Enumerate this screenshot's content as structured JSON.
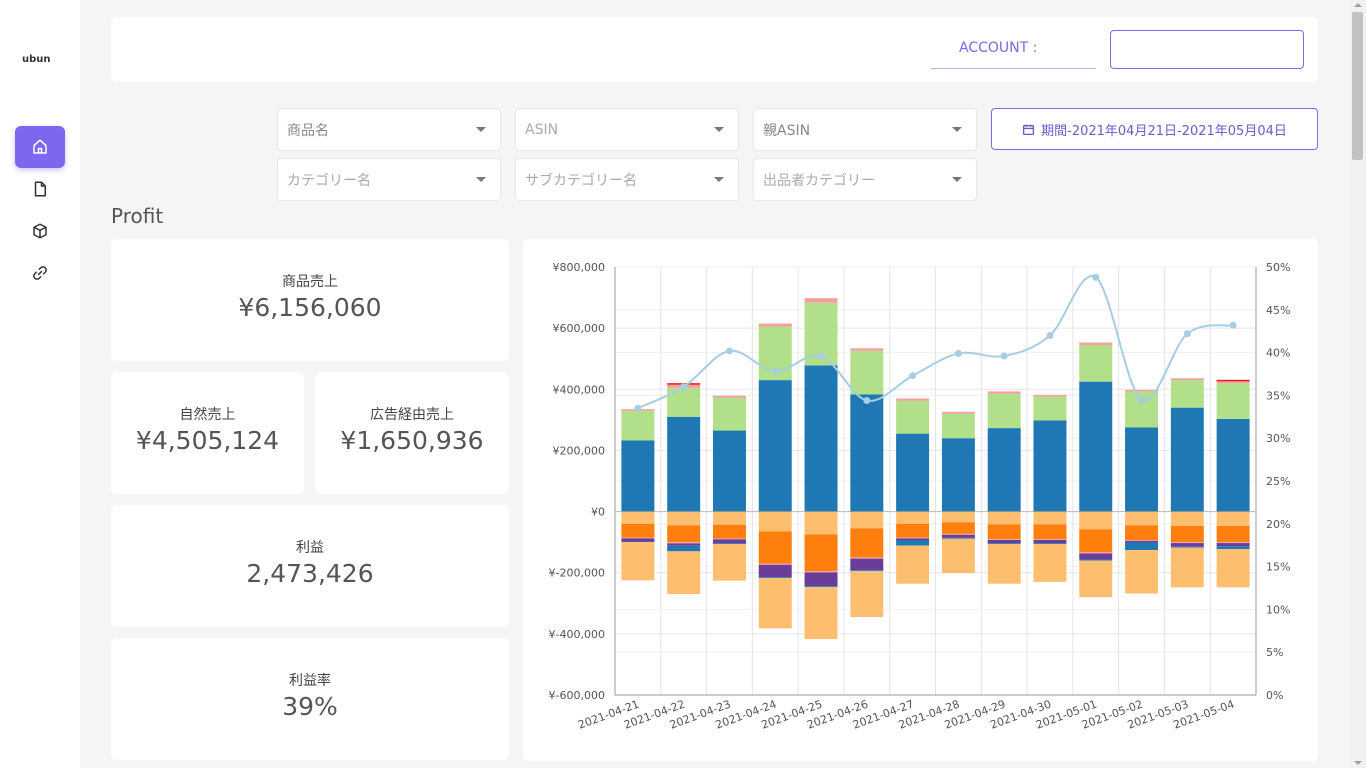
{
  "app": {
    "logo": "ubun"
  },
  "sidebar": {
    "items": [
      {
        "icon": "home-icon",
        "active": true
      },
      {
        "icon": "document-icon",
        "active": false
      },
      {
        "icon": "package-icon",
        "active": false
      },
      {
        "icon": "link-icon",
        "active": false
      }
    ]
  },
  "header": {
    "account_label": "ACCOUNT :",
    "account_value": ""
  },
  "filters": {
    "product_name": "商品名",
    "asin": "ASIN",
    "parent_asin": "親ASIN",
    "category": "カテゴリー名",
    "subcategory": "サブカテゴリー名",
    "seller_category": "出品者カテゴリー",
    "period": "期間-2021年04月21日-2021年05月04日"
  },
  "section": {
    "title": "Profit"
  },
  "kpis": {
    "sales": {
      "label": "商品売上",
      "value": "¥6,156,060"
    },
    "organic": {
      "label": "自然売上",
      "value": "¥4,505,124"
    },
    "ad": {
      "label": "広告経由売上",
      "value": "¥1,650,936"
    },
    "profit": {
      "label": "利益",
      "value": "2,473,426"
    },
    "margin": {
      "label": "利益率",
      "value": "39%"
    }
  },
  "colors": {
    "blue": "#1f77b4",
    "green": "#b2df8a",
    "pink": "#f4a09c",
    "red": "#e31a1c",
    "orange": "#ff7f0e",
    "light_orange": "#fdbf6f",
    "purple": "#6a3d9a",
    "teal": "#1f78b4",
    "line": "#a6cee3",
    "accent": "#7b68ee"
  },
  "chart_data": {
    "type": "bar",
    "categories": [
      "2021-04-21",
      "2021-04-22",
      "2021-04-23",
      "2021-04-24",
      "2021-04-25",
      "2021-04-26",
      "2021-04-27",
      "2021-04-28",
      "2021-04-29",
      "2021-04-30",
      "2021-05-01",
      "2021-05-02",
      "2021-05-03",
      "2021-05-04"
    ],
    "ylim": [
      -600000,
      800000
    ],
    "y_ticks": [
      "¥800,000",
      "¥600,000",
      "¥400,000",
      "¥200,000",
      "¥0",
      "¥-200,000",
      "¥-400,000",
      "¥-600,000"
    ],
    "y2lim": [
      0,
      50
    ],
    "y2_ticks": [
      "50%",
      "45%",
      "40%",
      "35%",
      "30%",
      "25%",
      "20%",
      "15%",
      "10%",
      "5%",
      "0%"
    ],
    "stacked": true,
    "grid": true,
    "positive_series": [
      {
        "color": "#1f77b4",
        "values": [
          233000,
          310000,
          265000,
          430000,
          478000,
          383000,
          255000,
          240000,
          273000,
          298000,
          425000,
          275000,
          340000,
          303000
        ]
      },
      {
        "color": "#b2df8a",
        "values": [
          97000,
          95000,
          108000,
          175000,
          205000,
          143000,
          107000,
          80000,
          112000,
          78000,
          120000,
          118000,
          90000,
          117000
        ]
      },
      {
        "color": "#f4a09c",
        "values": [
          5000,
          10000,
          6000,
          10000,
          15000,
          8000,
          8000,
          6000,
          8000,
          6000,
          8000,
          5000,
          6000,
          6000
        ]
      },
      {
        "color": "#e31a1c",
        "values": [
          0,
          5000,
          0,
          0,
          0,
          0,
          0,
          0,
          0,
          0,
          0,
          0,
          0,
          5000
        ]
      }
    ],
    "negative_series": [
      {
        "color": "#fdbf6f",
        "values": [
          -40000,
          -45000,
          -43000,
          -65000,
          -75000,
          -55000,
          -40000,
          -35000,
          -42000,
          -42000,
          -58000,
          -45000,
          -47000,
          -47000
        ]
      },
      {
        "color": "#ff7f0e",
        "values": [
          -45000,
          -55000,
          -45000,
          -105000,
          -120000,
          -95000,
          -45000,
          -38000,
          -48000,
          -48000,
          -75000,
          -48000,
          -53000,
          -53000
        ]
      },
      {
        "color": "#f4a09c",
        "values": [
          -3000,
          -4000,
          -3000,
          -4000,
          -4000,
          -4000,
          -3000,
          -3000,
          -3000,
          -3000,
          -4000,
          -3000,
          -3000,
          -3000
        ]
      },
      {
        "color": "#6a3d9a",
        "values": [
          -10000,
          -8000,
          -12000,
          -40000,
          -45000,
          -38000,
          -5000,
          -10000,
          -10000,
          -10000,
          -20000,
          -5000,
          -12000,
          -10000
        ]
      },
      {
        "color": "#1f78b4",
        "values": [
          -2000,
          -18000,
          -3000,
          -3000,
          -3000,
          -3000,
          -18000,
          -3000,
          -3000,
          -3000,
          -3000,
          -25000,
          -3000,
          -10000
        ]
      },
      {
        "color": "#fdbf6f",
        "values": [
          -125000,
          -140000,
          -120000,
          -165000,
          -170000,
          -150000,
          -125000,
          -112000,
          -130000,
          -124000,
          -120000,
          -142000,
          -130000,
          -125000
        ]
      }
    ],
    "line": {
      "color": "#a6cee3",
      "values": [
        33.5,
        36,
        40.2,
        37.8,
        39.6,
        34.4,
        37.3,
        39.9,
        39.6,
        42,
        48.8,
        34.5,
        42.2,
        43.2
      ]
    }
  }
}
